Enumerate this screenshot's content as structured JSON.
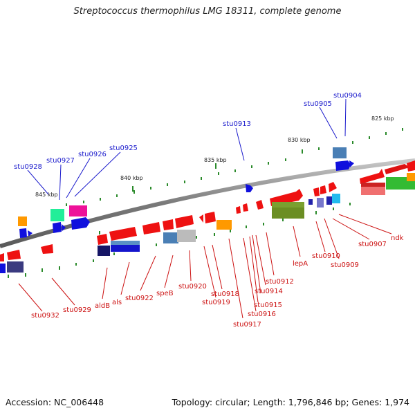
{
  "title": "Streptococcus thermophilus LMG 18311, complete genome",
  "footer": {
    "accession": "Accession: NC_006448",
    "summary": "Topology: circular; Length: 1,796,846 bp; Genes: 1,974"
  },
  "colors": {
    "backbone": "#8a8a8a",
    "top_label": "#1a1acc",
    "bottom_label": "#cc1111",
    "tick": "#2a8a2a"
  },
  "scale_marks": [
    {
      "label": "825 kbp",
      "kbp": 825
    },
    {
      "label": "830 kbp",
      "kbp": 830
    },
    {
      "label": "835 kbp",
      "kbp": 835
    },
    {
      "label": "840 kbp",
      "kbp": 840
    },
    {
      "label": "845 kbp",
      "kbp": 845
    }
  ],
  "top_labels": [
    "stu0904",
    "stu0905",
    "stu0913",
    "stu0925",
    "stu0926",
    "stu0927",
    "stu0928"
  ],
  "bottom_labels": [
    "ndk",
    "stu0907",
    "stu0909",
    "stu0910",
    "lepA",
    "stu0912",
    "stu0914",
    "stu0915",
    "stu0916",
    "stu0917",
    "stu0918",
    "stu0919",
    "stu0920",
    "speB",
    "stu0922",
    "als",
    "aldB",
    "stu0929",
    "stu0932"
  ]
}
